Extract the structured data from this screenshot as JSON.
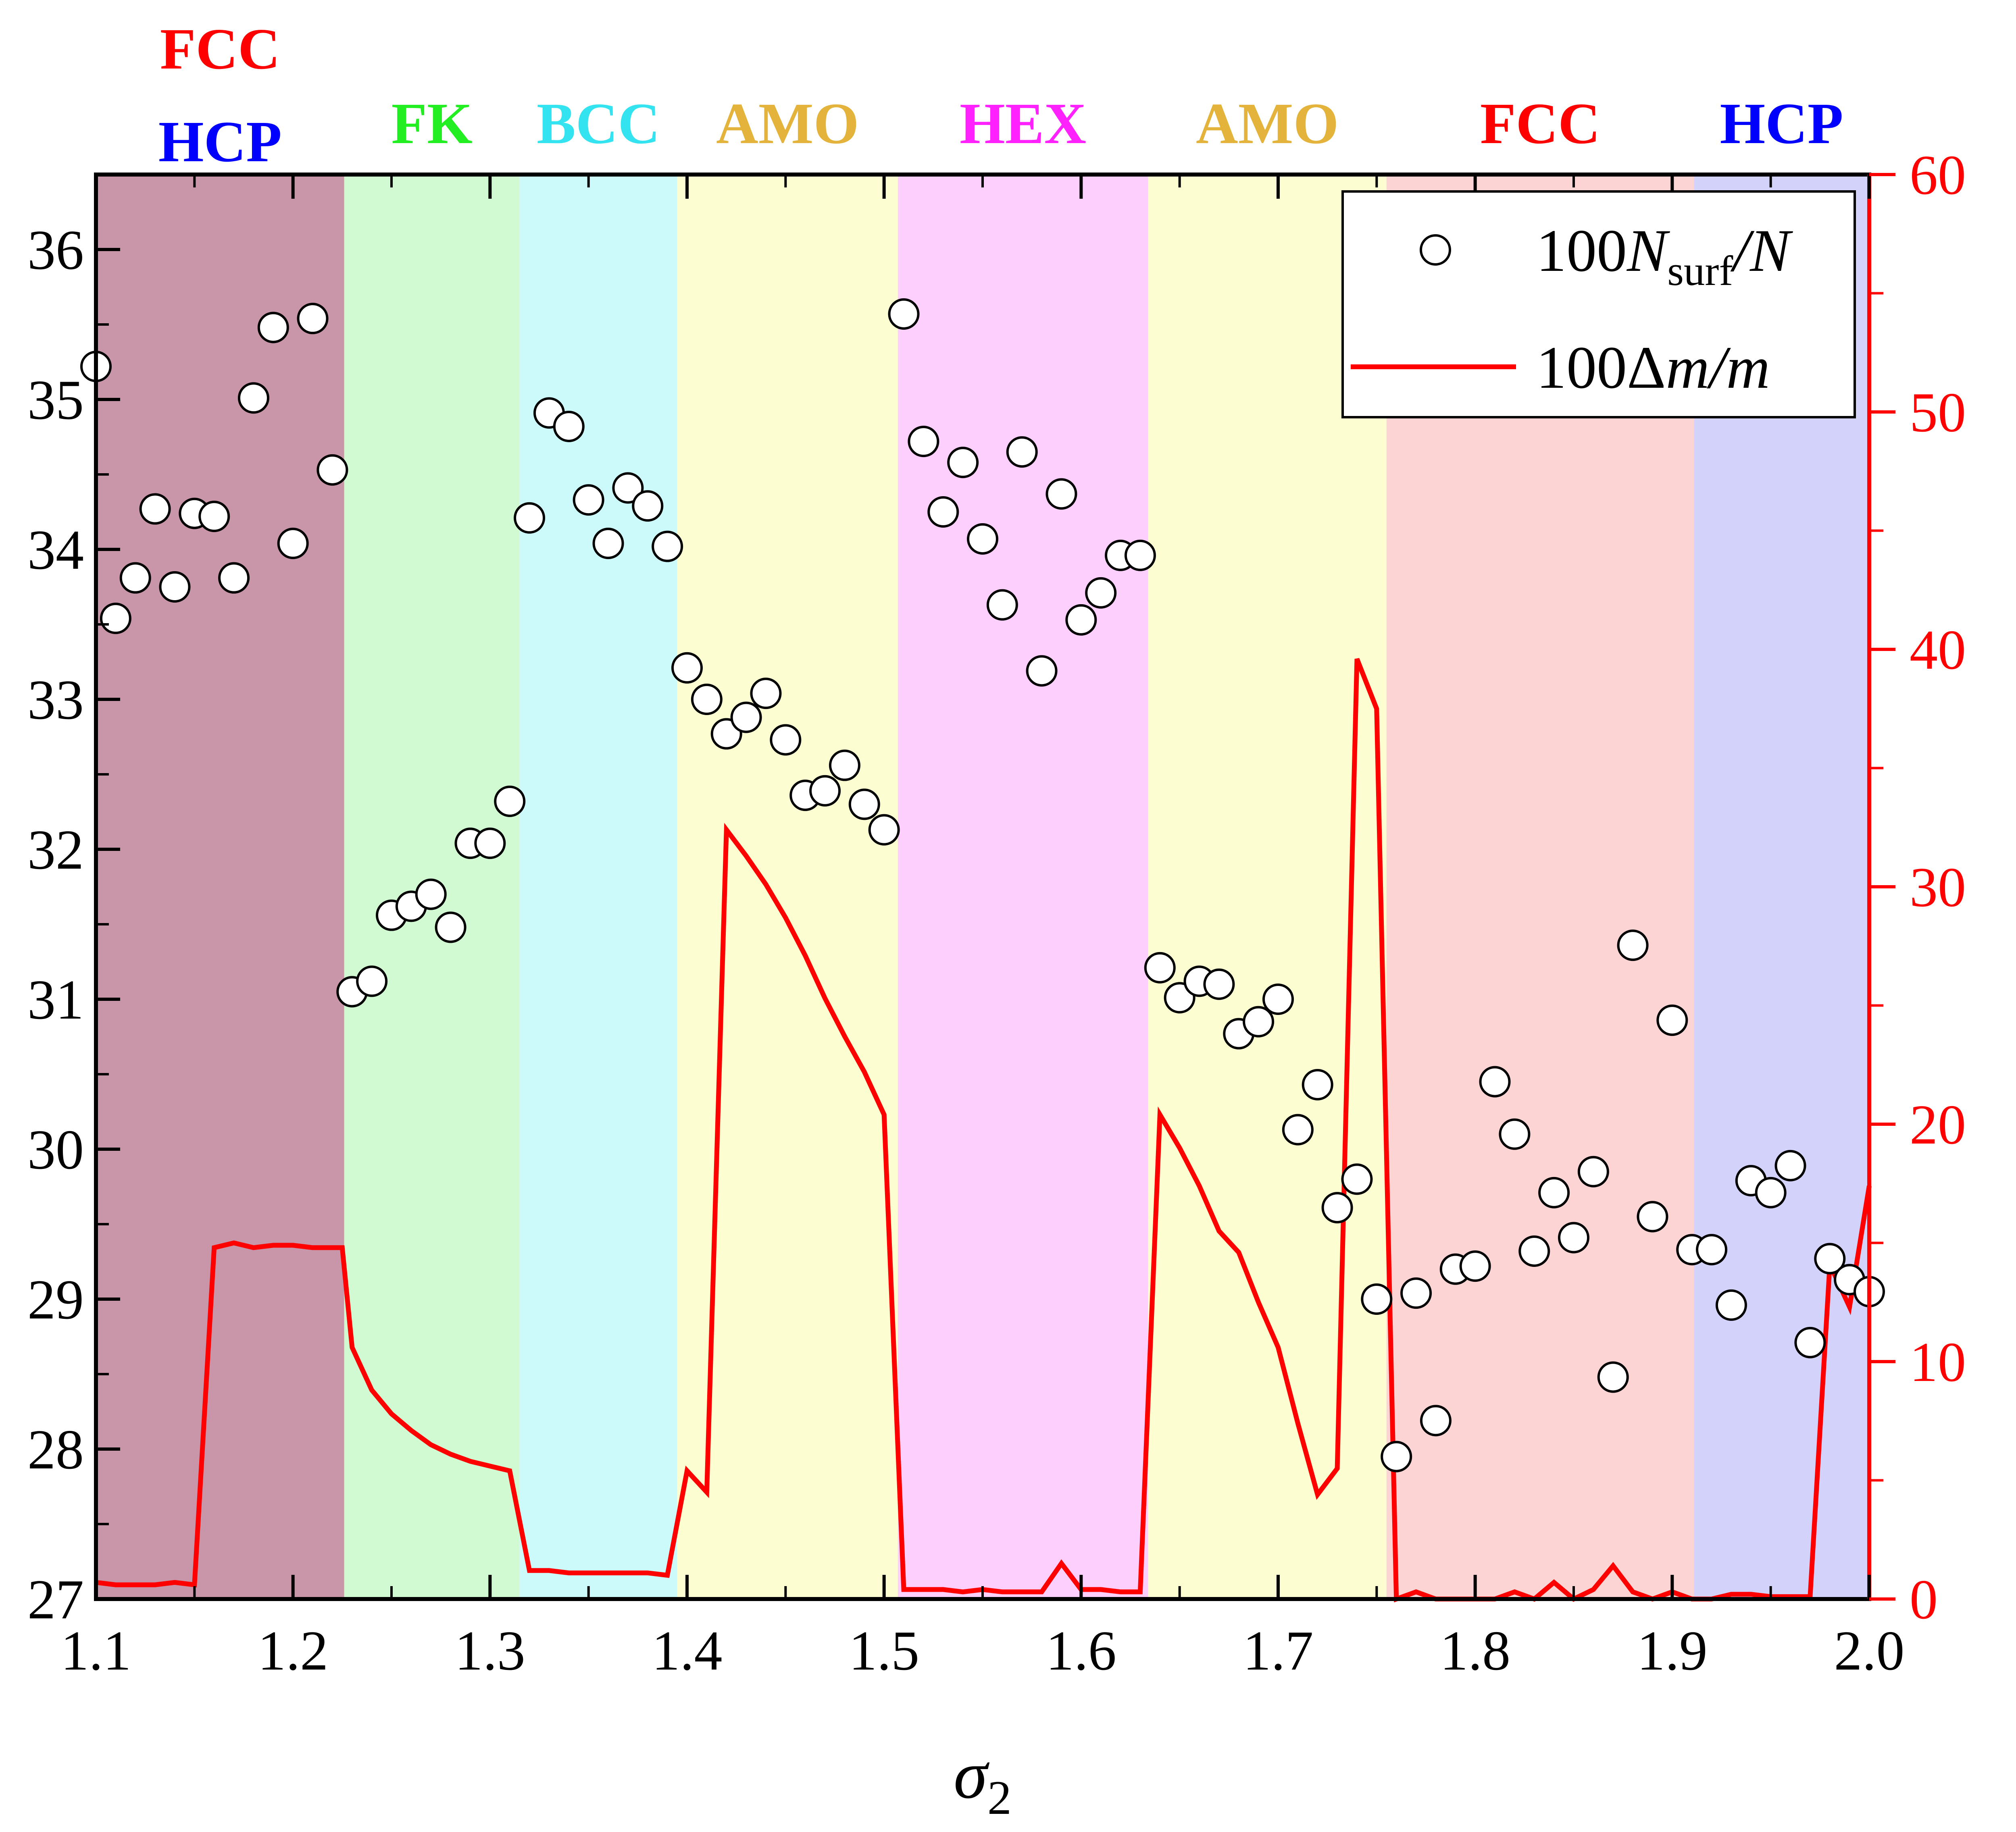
{
  "chart_data": {
    "type": "scatter",
    "xlabel": "σ₂",
    "xlim": [
      1.1,
      2.0
    ],
    "xticks": [
      "1.1",
      "1.2",
      "1.3",
      "1.4",
      "1.5",
      "1.6",
      "1.7",
      "1.8",
      "1.9",
      "2.0"
    ],
    "ylim_left": [
      27,
      36.5
    ],
    "yticks_left": [
      "27",
      "28",
      "29",
      "30",
      "31",
      "32",
      "33",
      "34",
      "35",
      "36"
    ],
    "ylim_right": [
      0,
      60
    ],
    "yticks_right": [
      "0",
      "10",
      "20",
      "30",
      "40",
      "50",
      "60"
    ],
    "grid": false,
    "legend": {
      "position": "top-right",
      "entries": [
        {
          "label": "100N_surf/N",
          "main": "100",
          "var": "N",
          "sub": "surf",
          "tail": "/N",
          "marker": "open-circle",
          "color": "#000000"
        },
        {
          "label": "100Δm/m",
          "main": "100Δ",
          "var": "m",
          "tail": "/m",
          "marker": "line",
          "color": "#ff0000"
        }
      ]
    },
    "phases": [
      {
        "label": "FCC\nHCP",
        "label_top": "FCC",
        "label_bottom": "HCP",
        "x_start": 1.1,
        "x_end": 1.226,
        "color": "#c896a8",
        "text_color_top": "#ff0000",
        "text_color_bottom": "#0000ff"
      },
      {
        "label": "FK",
        "x_start": 1.226,
        "x_end": 1.315,
        "color": "#d2fad2",
        "text_color": "#22ee22"
      },
      {
        "label": "BCC",
        "x_start": 1.315,
        "x_end": 1.395,
        "color": "#ccfafa",
        "text_color": "#33e4f0"
      },
      {
        "label": "AMO",
        "x_start": 1.395,
        "x_end": 1.507,
        "color": "#fdfdd2",
        "text_color": "#e3b33b"
      },
      {
        "label": "HEX",
        "x_start": 1.507,
        "x_end": 1.634,
        "color": "#fccffc",
        "text_color": "#ff22ff"
      },
      {
        "label": "AMO",
        "x_start": 1.634,
        "x_end": 1.755,
        "color": "#fdfdd2",
        "text_color": "#e3b33b"
      },
      {
        "label": "FCC",
        "x_start": 1.755,
        "x_end": 1.911,
        "color": "#fcd4d4",
        "text_color": "#ff0000"
      },
      {
        "label": "HCP",
        "x_start": 1.911,
        "x_end": 2.0,
        "color": "#d2d2fa",
        "text_color": "#0000ff"
      }
    ],
    "series": [
      {
        "name": "100N_surf/N",
        "axis": "left",
        "style": "open-circle",
        "color": "#000000",
        "x": [
          1.1,
          1.11,
          1.12,
          1.13,
          1.14,
          1.15,
          1.16,
          1.17,
          1.18,
          1.19,
          1.2,
          1.21,
          1.22,
          1.23,
          1.24,
          1.25,
          1.26,
          1.27,
          1.28,
          1.29,
          1.3,
          1.31,
          1.32,
          1.33,
          1.34,
          1.35,
          1.36,
          1.37,
          1.38,
          1.39,
          1.4,
          1.41,
          1.42,
          1.43,
          1.44,
          1.45,
          1.46,
          1.47,
          1.48,
          1.49,
          1.5,
          1.51,
          1.52,
          1.53,
          1.54,
          1.55,
          1.56,
          1.57,
          1.58,
          1.59,
          1.6,
          1.61,
          1.62,
          1.63,
          1.64,
          1.65,
          1.66,
          1.67,
          1.68,
          1.69,
          1.7,
          1.71,
          1.72,
          1.73,
          1.74,
          1.75,
          1.76,
          1.77,
          1.78,
          1.79,
          1.8,
          1.81,
          1.82,
          1.83,
          1.84,
          1.85,
          1.86,
          1.87,
          1.88,
          1.89,
          1.9,
          1.91,
          1.92,
          1.93,
          1.94,
          1.95,
          1.96,
          1.97,
          1.98,
          1.99,
          2.0
        ],
        "y": [
          35.22,
          33.54,
          33.81,
          34.27,
          33.75,
          34.24,
          34.22,
          33.81,
          35.01,
          35.48,
          34.04,
          35.54,
          34.53,
          31.05,
          31.12,
          31.56,
          31.62,
          31.7,
          31.48,
          32.04,
          32.04,
          32.32,
          34.21,
          34.91,
          34.82,
          34.33,
          34.04,
          34.41,
          34.29,
          34.02,
          33.21,
          33.0,
          32.77,
          32.88,
          33.04,
          32.73,
          32.36,
          32.39,
          32.56,
          32.3,
          32.13,
          35.57,
          34.72,
          34.25,
          34.58,
          34.07,
          33.63,
          34.65,
          33.19,
          34.37,
          33.53,
          33.71,
          33.96,
          33.96,
          31.21,
          31.01,
          31.12,
          31.1,
          30.77,
          30.85,
          31.0,
          30.13,
          30.43,
          29.61,
          29.8,
          29.0,
          27.95,
          29.04,
          28.19,
          29.2,
          29.22,
          30.45,
          30.1,
          29.32,
          29.71,
          29.41,
          29.85,
          28.48,
          31.36,
          29.55,
          30.86,
          29.33,
          29.33,
          28.96,
          29.79,
          29.71,
          29.89,
          28.71,
          29.27,
          29.13,
          29.05
        ]
      },
      {
        "name": "100Δm/m",
        "axis": "right",
        "style": "line",
        "color": "#ff0000",
        "x": [
          1.1,
          1.11,
          1.12,
          1.13,
          1.14,
          1.15,
          1.16,
          1.17,
          1.18,
          1.19,
          1.2,
          1.21,
          1.22,
          1.225,
          1.23,
          1.24,
          1.25,
          1.26,
          1.27,
          1.28,
          1.29,
          1.3,
          1.31,
          1.32,
          1.33,
          1.34,
          1.35,
          1.36,
          1.37,
          1.38,
          1.39,
          1.4,
          1.41,
          1.42,
          1.43,
          1.44,
          1.45,
          1.46,
          1.47,
          1.48,
          1.49,
          1.5,
          1.51,
          1.52,
          1.53,
          1.54,
          1.55,
          1.56,
          1.57,
          1.58,
          1.59,
          1.6,
          1.61,
          1.62,
          1.63,
          1.64,
          1.65,
          1.66,
          1.67,
          1.68,
          1.69,
          1.7,
          1.71,
          1.72,
          1.73,
          1.74,
          1.75,
          1.76,
          1.77,
          1.78,
          1.79,
          1.8,
          1.81,
          1.82,
          1.83,
          1.84,
          1.85,
          1.86,
          1.87,
          1.88,
          1.89,
          1.9,
          1.91,
          1.92,
          1.93,
          1.94,
          1.95,
          1.96,
          1.97,
          1.98,
          1.99,
          2.0
        ],
        "y": [
          0.7,
          0.6,
          0.6,
          0.6,
          0.7,
          0.6,
          14.8,
          15.0,
          14.8,
          14.9,
          14.9,
          14.8,
          14.8,
          14.8,
          10.6,
          8.8,
          7.8,
          7.1,
          6.5,
          6.1,
          5.8,
          5.6,
          5.4,
          1.2,
          1.2,
          1.1,
          1.1,
          1.1,
          1.1,
          1.1,
          1.0,
          5.4,
          4.5,
          32.4,
          31.3,
          30.1,
          28.7,
          27.1,
          25.3,
          23.7,
          22.2,
          20.4,
          0.4,
          0.4,
          0.4,
          0.3,
          0.4,
          0.3,
          0.3,
          0.3,
          1.5,
          0.4,
          0.4,
          0.3,
          0.3,
          20.4,
          19.0,
          17.4,
          15.5,
          14.6,
          12.5,
          10.6,
          7.4,
          4.4,
          5.5,
          39.6,
          37.5,
          0.0,
          0.3,
          0.0,
          0.0,
          0.0,
          0.0,
          0.3,
          0.0,
          0.7,
          0.0,
          0.4,
          1.4,
          0.3,
          0.0,
          0.3,
          0.0,
          0.0,
          0.2,
          0.2,
          0.1,
          0.1,
          0.1,
          14.1,
          12.3,
          17.4
        ]
      }
    ]
  }
}
